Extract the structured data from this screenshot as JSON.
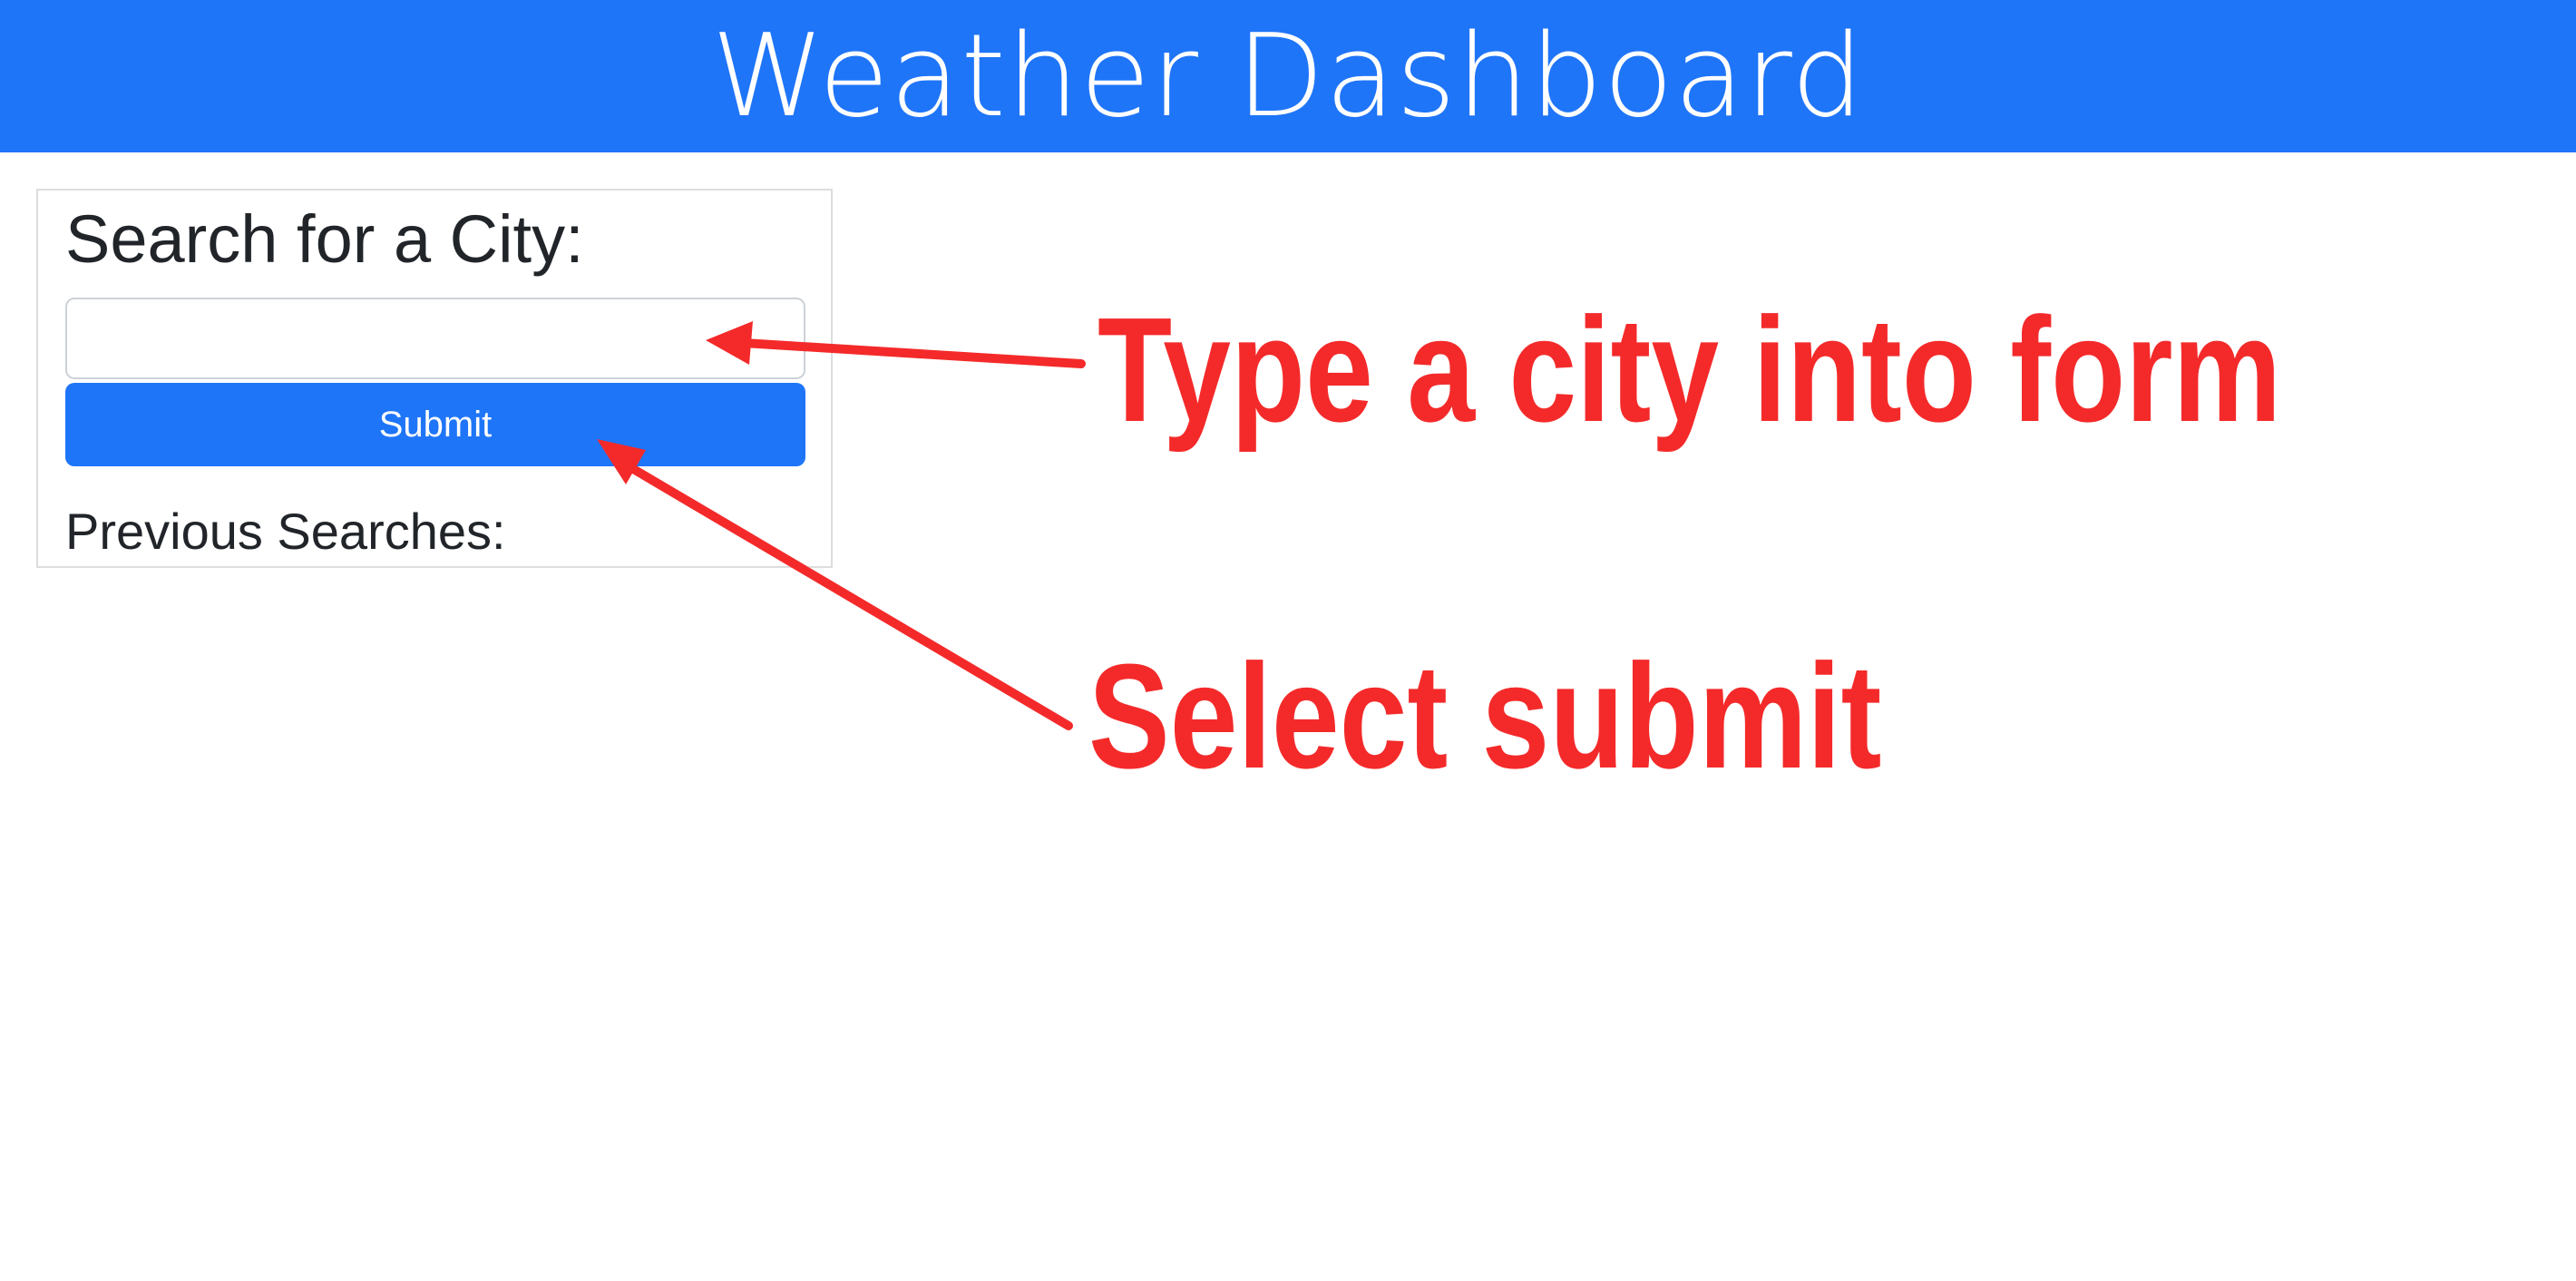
{
  "header": {
    "title": "Weather Dashboard",
    "background_color": "#1f75f8"
  },
  "search": {
    "heading": "Search for a City:",
    "input_value": "",
    "input_placeholder": "",
    "submit_label": "Submit",
    "previous_heading": "Previous Searches:"
  },
  "annotations": {
    "type_city": "Type a city into form",
    "select_submit": "Select submit",
    "color": "#f42a2a"
  }
}
